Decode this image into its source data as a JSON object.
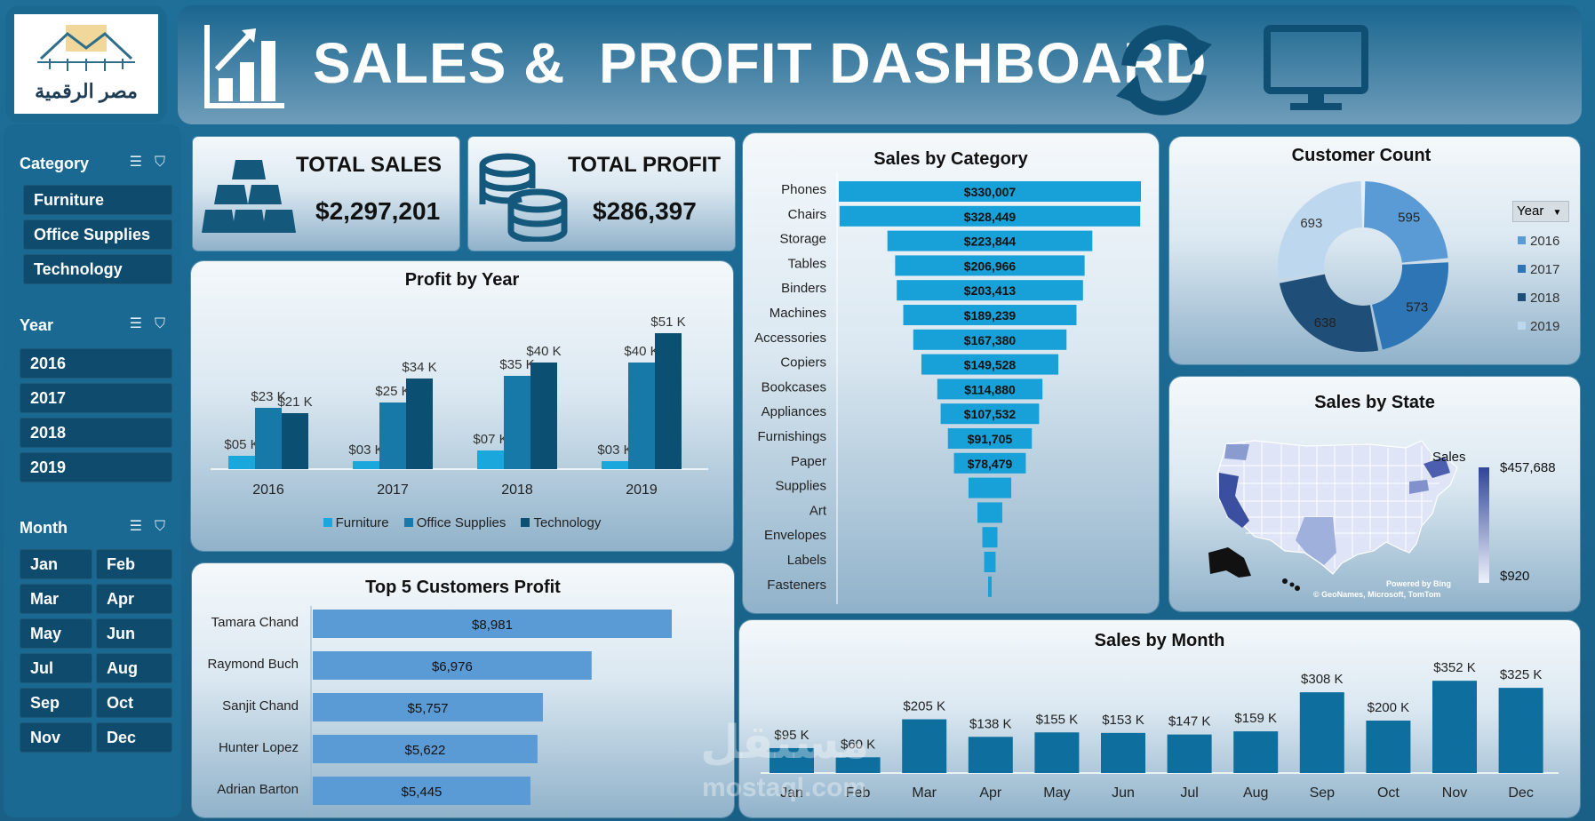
{
  "header": {
    "title": "SALES &  PROFIT DASHBOARD",
    "logo_text": "مصر الرقمية"
  },
  "colors": {
    "furniture": "#1aa7dc",
    "office": "#1679a8",
    "technology": "#0b4f72",
    "funnel": "#17a1d8",
    "customers_bar": "#5b9bd5",
    "month_bar": "#0e6f9e"
  },
  "sidebar": {
    "category": {
      "title": "Category",
      "items": [
        "Furniture",
        "Office Supplies",
        "Technology"
      ]
    },
    "year": {
      "title": "Year",
      "items": [
        "2016",
        "2017",
        "2018",
        "2019"
      ]
    },
    "month": {
      "title": "Month",
      "items": [
        "Jan",
        "Feb",
        "Mar",
        "Apr",
        "May",
        "Jun",
        "Jul",
        "Aug",
        "Sep",
        "Oct",
        "Nov",
        "Dec"
      ]
    }
  },
  "kpis": {
    "sales": {
      "label": "TOTAL SALES",
      "value": "$2,297,201"
    },
    "profit": {
      "label": "TOTAL PROFIT",
      "value": "$286,397"
    }
  },
  "charts": {
    "profit_by_year": {
      "type": "bar",
      "title": "Profit by Year",
      "categories": [
        "2016",
        "2017",
        "2018",
        "2019"
      ],
      "series": [
        {
          "name": "Furniture",
          "values": [
            5,
            3,
            7,
            3
          ],
          "labels": [
            "$05 K",
            "$03 K",
            "$07 K",
            "$03 K"
          ]
        },
        {
          "name": "Office Supplies",
          "values": [
            23,
            25,
            35,
            40
          ],
          "labels": [
            "$23 K",
            "$25 K",
            "$35 K",
            "$40 K"
          ]
        },
        {
          "name": "Technology",
          "values": [
            21,
            34,
            40,
            51
          ],
          "labels": [
            "$21 K",
            "$34 K",
            "$40 K",
            "$51 K"
          ]
        }
      ]
    },
    "sales_by_category": {
      "type": "bar",
      "title": "Sales by Category",
      "categories": [
        "Phones",
        "Chairs",
        "Storage",
        "Tables",
        "Binders",
        "Machines",
        "Accessories",
        "Copiers",
        "Bookcases",
        "Appliances",
        "Furnishings",
        "Paper",
        "Supplies",
        "Art",
        "Envelopes",
        "Labels",
        "Fasteners"
      ],
      "values": [
        330007,
        328449,
        223844,
        206966,
        203413,
        189239,
        167380,
        149528,
        114880,
        107532,
        91705,
        78479,
        46674,
        27119,
        16476,
        12486,
        3024
      ],
      "labels": [
        "$330,007",
        "$328,449",
        "$223,844",
        "$206,966",
        "$203,413",
        "$189,239",
        "$167,380",
        "$149,528",
        "$114,880",
        "$107,532",
        "$91,705",
        "$78,479",
        "",
        "",
        "",
        "",
        ""
      ]
    },
    "customer_count": {
      "type": "pie",
      "title": "Customer Count",
      "legend_title": "Year",
      "categories": [
        "2016",
        "2017",
        "2018",
        "2019"
      ],
      "values": [
        595,
        573,
        638,
        693
      ],
      "labels": [
        "595",
        "573",
        "638",
        "693"
      ],
      "colors": [
        "#5b9bd5",
        "#2e75b6",
        "#1f4e79",
        "#bdd7ee"
      ]
    },
    "sales_by_state": {
      "title": "Sales by State",
      "legend_title": "Sales",
      "max_label": "$457,688",
      "min_label": "$920",
      "attribution_1": "Powered by Bing",
      "attribution_2": "© GeoNames, Microsoft, TomTom"
    },
    "top_customers": {
      "type": "bar",
      "title": "Top 5 Customers Profit",
      "categories": [
        "Tamara Chand",
        "Raymond Buch",
        "Sanjit Chand",
        "Hunter Lopez",
        "Adrian Barton"
      ],
      "values": [
        8981,
        6976,
        5757,
        5622,
        5445
      ],
      "labels": [
        "$8,981",
        "$6,976",
        "$5,757",
        "$5,622",
        "$5,445"
      ]
    },
    "sales_by_month": {
      "type": "bar",
      "title": "Sales by Month",
      "categories": [
        "Jan",
        "Feb",
        "Mar",
        "Apr",
        "May",
        "Jun",
        "Jul",
        "Aug",
        "Sep",
        "Oct",
        "Nov",
        "Dec"
      ],
      "values": [
        95,
        60,
        205,
        138,
        155,
        153,
        147,
        159,
        308,
        200,
        352,
        325
      ],
      "labels": [
        "$95 K",
        "$60 K",
        "$205 K",
        "$138 K",
        "$155 K",
        "$153 K",
        "$147 K",
        "$159 K",
        "$308 K",
        "$200 K",
        "$352 K",
        "$325 K"
      ]
    }
  },
  "watermark": {
    "arabic": "مستقل",
    "latin": "mostaql.com"
  }
}
